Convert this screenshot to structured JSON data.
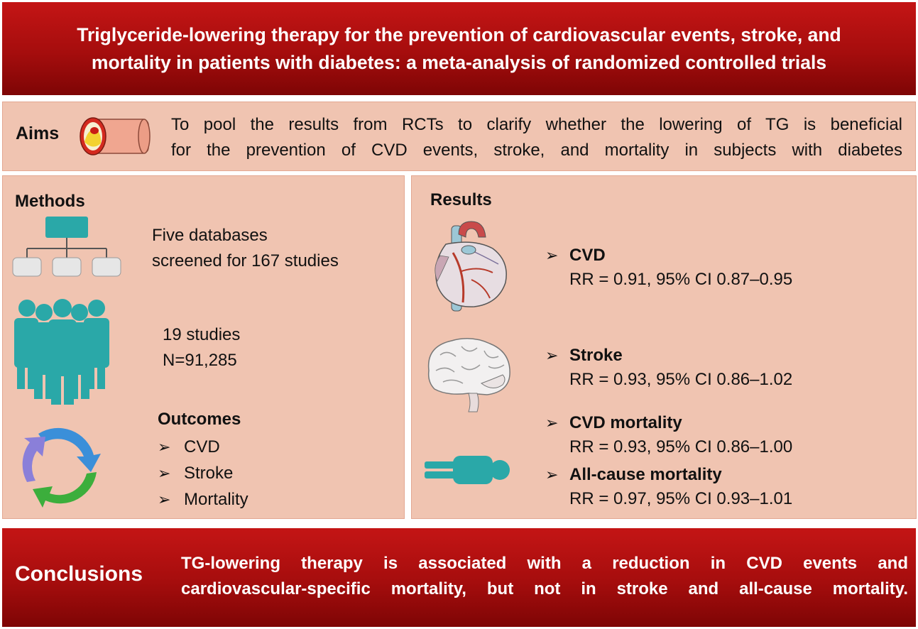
{
  "title": {
    "line1": "Triglyceride-lowering therapy for the prevention of cardiovascular events, stroke, and",
    "line2": "mortality in patients with diabetes: a meta-analysis of randomized controlled trials"
  },
  "aims": {
    "label": "Aims",
    "line1": "To pool the results from RCTs to clarify whether the lowering of TG is beneficial",
    "line2": "for the prevention of CVD events, stroke, and mortality in subjects with diabetes",
    "icon": "artery-cross-section-icon"
  },
  "methods": {
    "heading": "Methods",
    "databases_line1": "Five databases",
    "databases_line2": "screened for 167 studies",
    "studies_line1": "19 studies",
    "studies_line2": "N=91,285",
    "outcomes_heading": "Outcomes",
    "outcomes": [
      "CVD",
      "Stroke",
      "Mortality"
    ],
    "bullet": "➢",
    "icons": [
      "flowchart-icon",
      "people-group-icon",
      "cycle-arrows-icon"
    ]
  },
  "results": {
    "heading": "Results",
    "bullet": "➢",
    "items": [
      {
        "title": "CVD",
        "value": "RR = 0.91, 95% CI 0.87–0.95"
      },
      {
        "title": "Stroke",
        "value": "RR = 0.93, 95% CI 0.86–1.02"
      },
      {
        "title": "CVD mortality",
        "value": "RR = 0.93, 95% CI 0.86–1.00"
      },
      {
        "title": "All-cause mortality",
        "value": "RR = 0.97, 95% CI 0.93–1.01"
      }
    ],
    "icons": [
      "heart-icon",
      "brain-icon",
      "lying-person-icon"
    ]
  },
  "conclusions": {
    "label": "Conclusions",
    "line1": "TG-lowering therapy is associated with a reduction in CVD events and",
    "line2": "cardiovascular-specific mortality, but not in stroke and all-cause mortality."
  },
  "colors": {
    "banner_red": "#a50d0d",
    "panel_peach": "#f0c4b1",
    "icon_teal": "#2aa8a8"
  }
}
